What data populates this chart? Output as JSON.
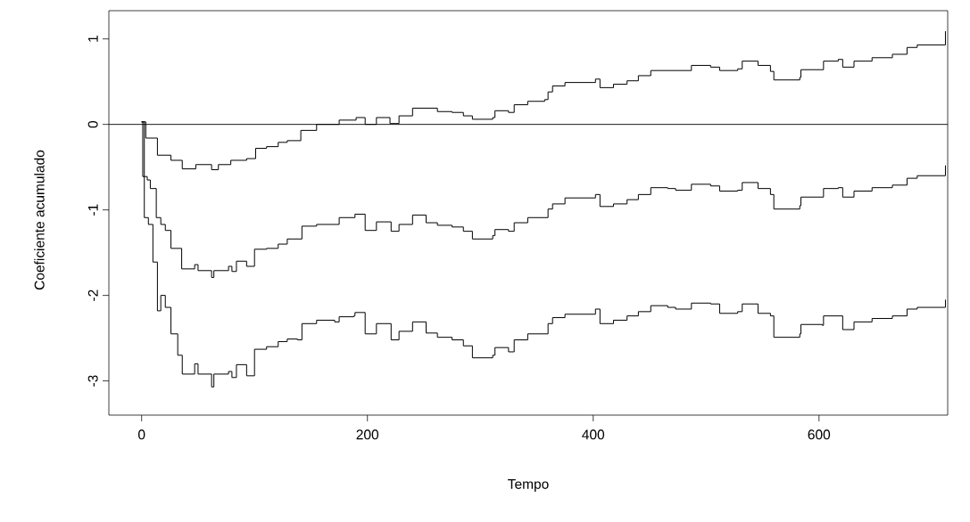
{
  "chart_data": {
    "type": "step",
    "xlabel": "Tempo",
    "ylabel": "Coeficiente acumulado",
    "xlim": [
      -29,
      714
    ],
    "ylim": [
      -3.4,
      1.33
    ],
    "xticks": [
      0,
      200,
      400,
      600
    ],
    "yticks": [
      -3,
      -2,
      -1,
      0,
      1
    ],
    "ref_lines": [
      {
        "axis": "y",
        "value": 0,
        "color": "#000000"
      }
    ],
    "series": [
      {
        "color": "#000000",
        "x": [
          0,
          3.7,
          7.7,
          14,
          26,
          36,
          48,
          62,
          68,
          79,
          93,
          101,
          110.7,
          121,
          129,
          138,
          141,
          155,
          171,
          175,
          190,
          198,
          208,
          220,
          222,
          228,
          240,
          252,
          262,
          275,
          285,
          293,
          311,
          313,
          325,
          330,
          342,
          357,
          360,
          364,
          375,
          398,
          402,
          406,
          418,
          430,
          440,
          451,
          466,
          473,
          487,
          504,
          512,
          528,
          532,
          546,
          557,
          560,
          583,
          584,
          603,
          604,
          617,
          621,
          631,
          647,
          665,
          678,
          687,
          711,
          712
        ],
        "values": [
          0.03,
          -0.16,
          -0.16,
          -0.36,
          -0.42,
          -0.52,
          -0.47,
          -0.53,
          -0.47,
          -0.42,
          -0.4,
          -0.28,
          -0.26,
          -0.21,
          -0.19,
          -0.19,
          -0.07,
          0.0,
          0.0,
          0.05,
          0.08,
          0.0,
          0.08,
          0.01,
          0.01,
          0.1,
          0.19,
          0.19,
          0.15,
          0.14,
          0.1,
          0.06,
          0.08,
          0.16,
          0.14,
          0.23,
          0.27,
          0.29,
          0.38,
          0.45,
          0.49,
          0.49,
          0.53,
          0.43,
          0.47,
          0.51,
          0.57,
          0.63,
          0.63,
          0.63,
          0.69,
          0.67,
          0.63,
          0.65,
          0.74,
          0.69,
          0.62,
          0.52,
          0.55,
          0.64,
          0.64,
          0.74,
          0.76,
          0.67,
          0.74,
          0.78,
          0.82,
          0.9,
          0.93,
          0.93,
          1.09
        ]
      },
      {
        "color": "#000000",
        "x": [
          0,
          1,
          5,
          7.7,
          13,
          17,
          21,
          26,
          35.5,
          47,
          50,
          62,
          64,
          77,
          80,
          84,
          93,
          100,
          110.7,
          121,
          129,
          138,
          142,
          155,
          171,
          175,
          188,
          189,
          198,
          208,
          221,
          222,
          228,
          240,
          252,
          262,
          275,
          285,
          293,
          311,
          313,
          325,
          330,
          342,
          357,
          360,
          364,
          375,
          398,
          402,
          406,
          418,
          430,
          440,
          451,
          466,
          473,
          487,
          504,
          512,
          528,
          532,
          546,
          557,
          560,
          583,
          584,
          603,
          604,
          617,
          621,
          631,
          647,
          665,
          678,
          687,
          711,
          712
        ],
        "values": [
          0.03,
          -0.61,
          -0.65,
          -0.75,
          -1.09,
          -1.17,
          -1.24,
          -1.45,
          -1.69,
          -1.64,
          -1.71,
          -1.79,
          -1.71,
          -1.66,
          -1.72,
          -1.6,
          -1.66,
          -1.46,
          -1.45,
          -1.4,
          -1.34,
          -1.34,
          -1.19,
          -1.17,
          -1.17,
          -1.09,
          -1.09,
          -1.05,
          -1.24,
          -1.14,
          -1.25,
          -1.25,
          -1.17,
          -1.06,
          -1.15,
          -1.18,
          -1.2,
          -1.25,
          -1.34,
          -1.3,
          -1.23,
          -1.25,
          -1.15,
          -1.09,
          -1.09,
          -0.99,
          -0.93,
          -0.86,
          -0.86,
          -0.82,
          -0.96,
          -0.93,
          -0.88,
          -0.82,
          -0.74,
          -0.75,
          -0.77,
          -0.7,
          -0.72,
          -0.78,
          -0.77,
          -0.68,
          -0.75,
          -0.82,
          -0.99,
          -0.95,
          -0.85,
          -0.85,
          -0.75,
          -0.74,
          -0.85,
          -0.78,
          -0.74,
          -0.71,
          -0.63,
          -0.6,
          -0.6,
          -0.48
        ]
      },
      {
        "color": "#000000",
        "x": [
          0,
          2.4,
          6,
          10,
          14,
          17,
          21,
          26,
          32,
          36,
          47,
          50,
          62,
          64,
          77,
          80,
          84,
          93,
          100,
          110.7,
          121,
          129,
          138,
          142,
          155,
          171,
          175,
          188,
          189,
          198,
          208,
          221,
          222,
          228,
          240,
          252,
          262,
          275,
          285,
          293,
          311,
          313,
          325,
          330,
          342,
          357,
          360,
          364,
          375,
          398,
          402,
          406,
          418,
          430,
          440,
          451,
          466,
          473,
          487,
          504,
          512,
          528,
          532,
          546,
          557,
          560,
          583,
          584,
          603,
          604,
          617,
          621,
          631,
          647,
          665,
          678,
          687,
          711,
          712
        ],
        "values": [
          0.03,
          -1.09,
          -1.17,
          -1.61,
          -2.18,
          -2.0,
          -2.14,
          -2.45,
          -2.7,
          -2.92,
          -2.8,
          -2.92,
          -3.07,
          -2.92,
          -2.89,
          -2.96,
          -2.81,
          -2.94,
          -2.63,
          -2.6,
          -2.54,
          -2.51,
          -2.52,
          -2.33,
          -2.29,
          -2.31,
          -2.25,
          -2.24,
          -2.2,
          -2.45,
          -2.33,
          -2.52,
          -2.52,
          -2.42,
          -2.31,
          -2.44,
          -2.49,
          -2.52,
          -2.59,
          -2.73,
          -2.7,
          -2.61,
          -2.66,
          -2.52,
          -2.45,
          -2.45,
          -2.33,
          -2.26,
          -2.22,
          -2.22,
          -2.16,
          -2.33,
          -2.29,
          -2.24,
          -2.19,
          -2.12,
          -2.14,
          -2.16,
          -2.09,
          -2.1,
          -2.21,
          -2.19,
          -2.1,
          -2.21,
          -2.24,
          -2.49,
          -2.45,
          -2.34,
          -2.35,
          -2.24,
          -2.24,
          -2.4,
          -2.31,
          -2.27,
          -2.24,
          -2.16,
          -2.14,
          -2.14,
          -2.05
        ]
      }
    ]
  }
}
